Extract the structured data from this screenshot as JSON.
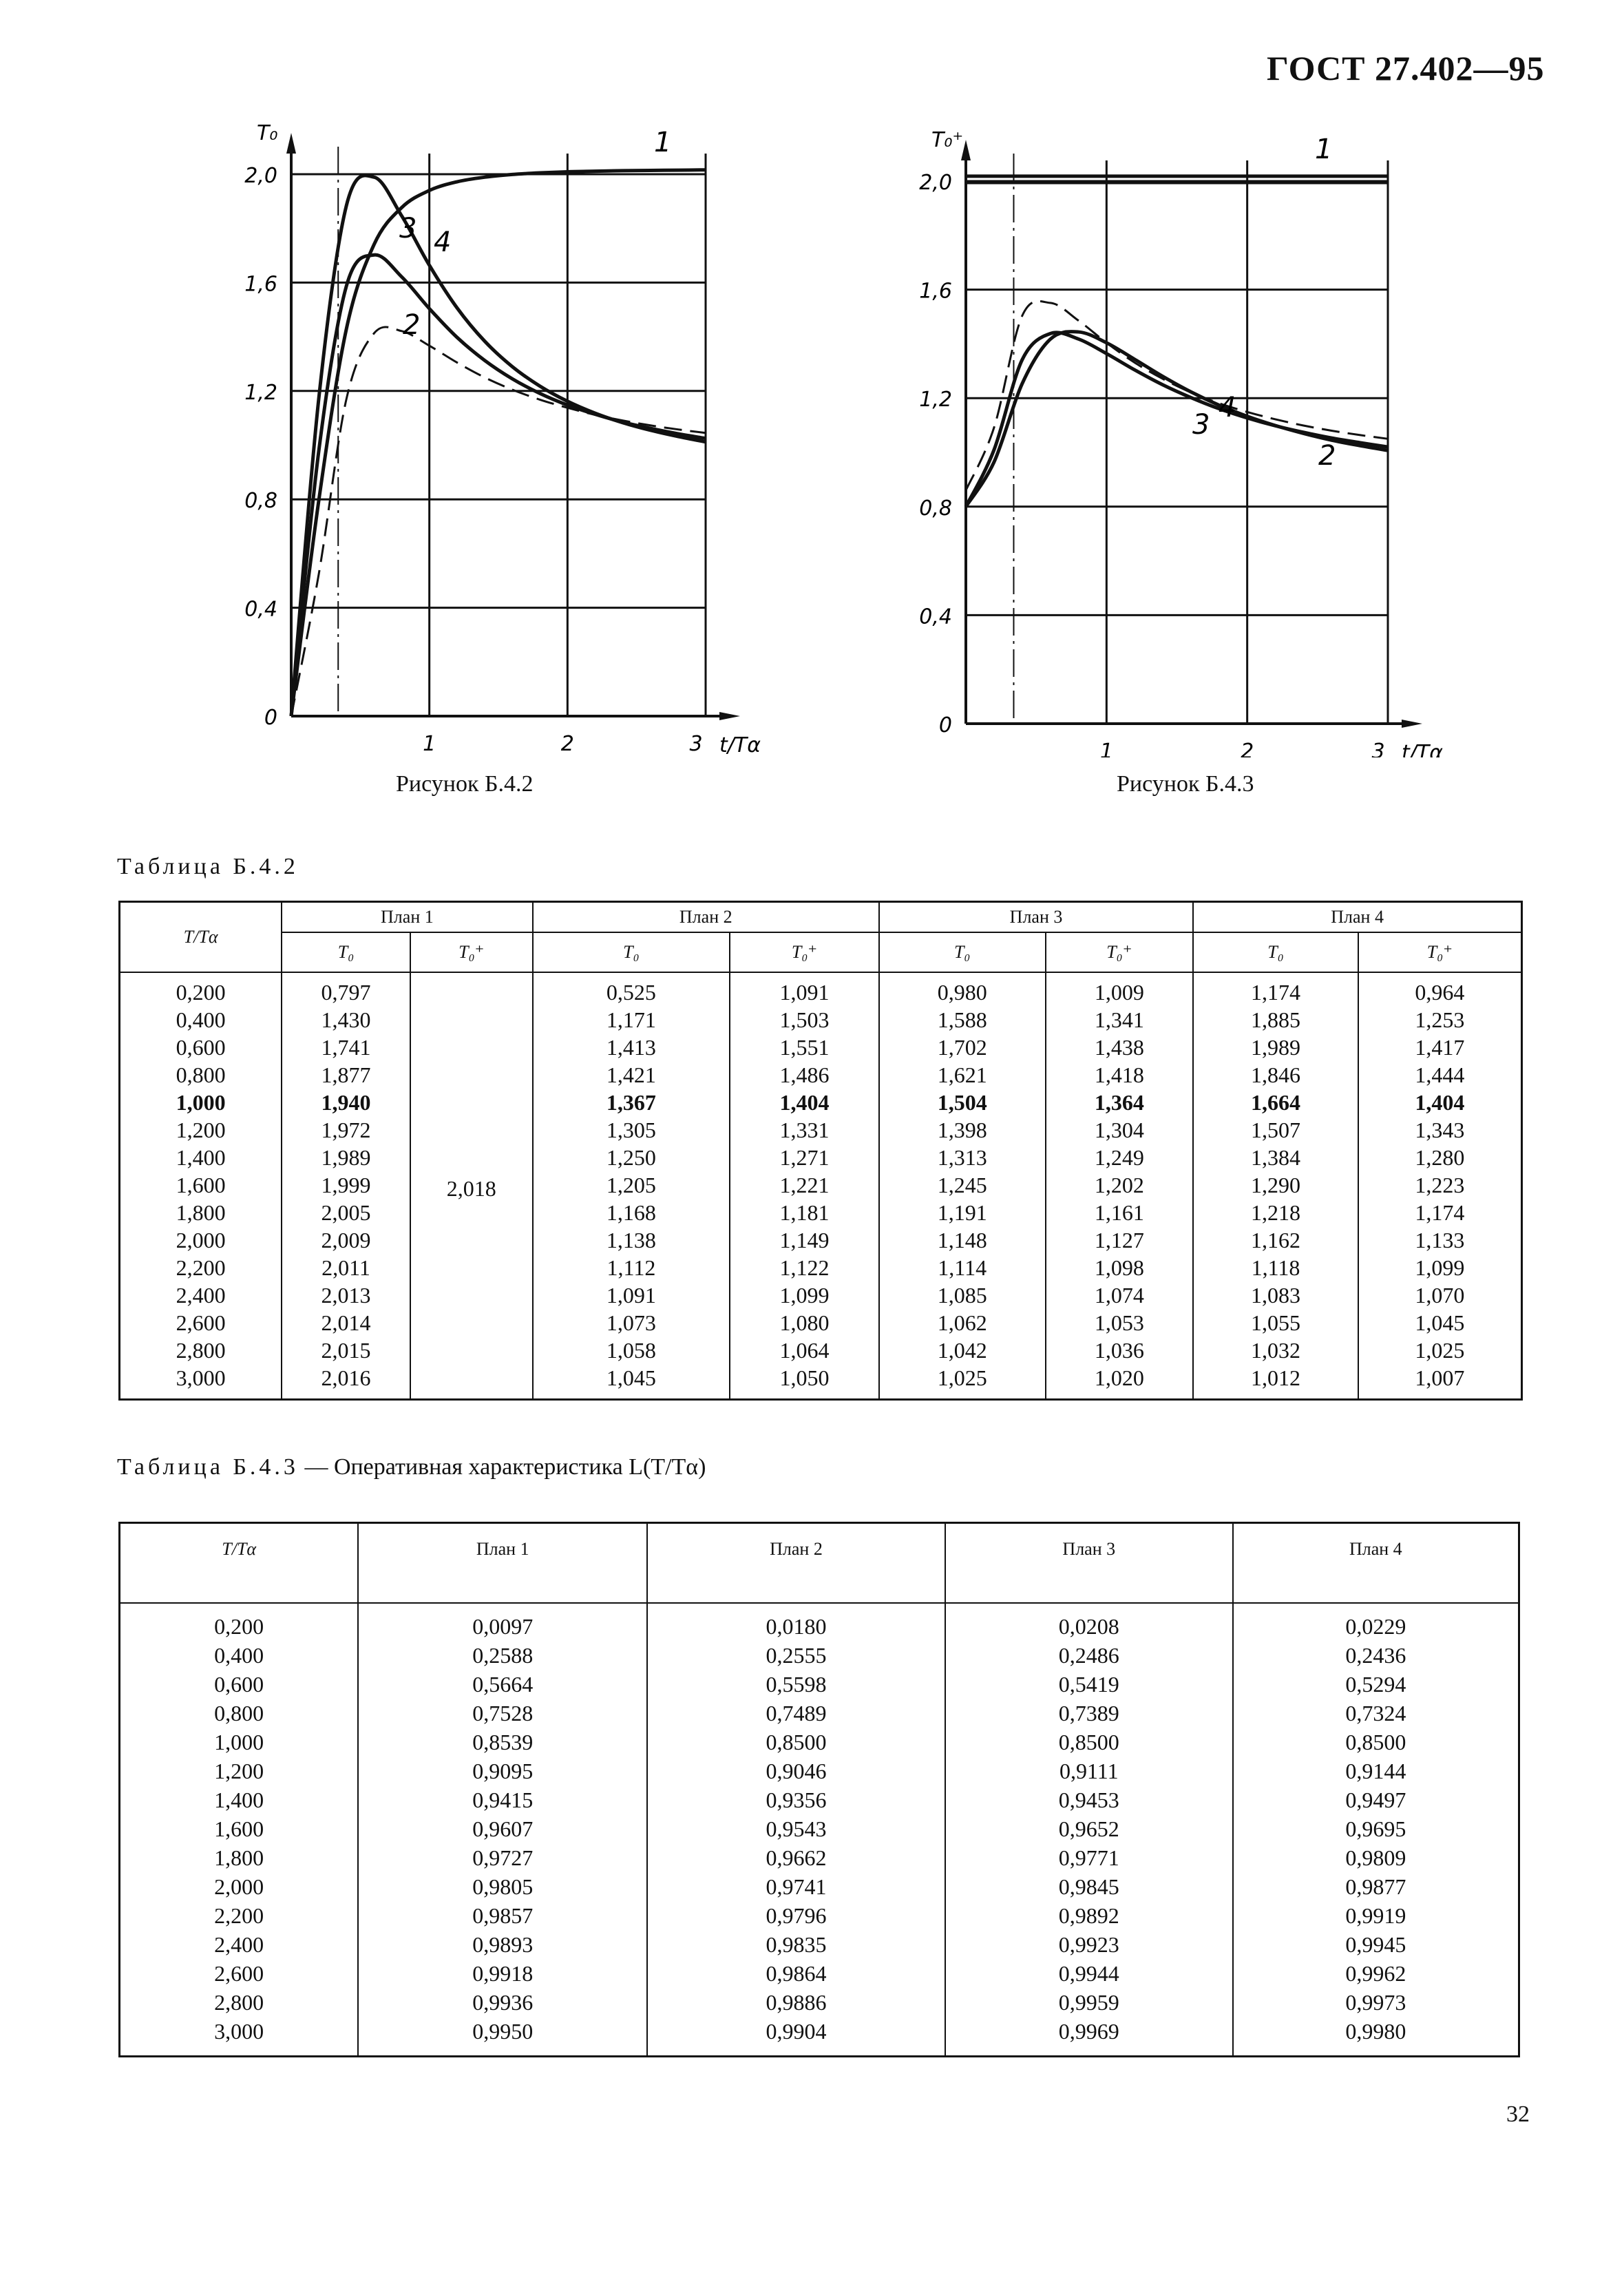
{
  "header": {
    "doc_id": "ГОСТ 27.402—95"
  },
  "figures": [
    {
      "caption": "Рисунок Б.4.2",
      "ylabel": "T₀",
      "xlabel": "t/Tα"
    },
    {
      "caption": "Рисунок Б.4.3",
      "ylabel": "T₀⁺",
      "xlabel": "t/Tα"
    }
  ],
  "chart_data": [
    {
      "type": "line",
      "title": "",
      "xlabel": "t/Tα",
      "ylabel": "T₀",
      "xlim": [
        0,
        3
      ],
      "ylim": [
        0,
        2.0
      ],
      "xticks": [
        "1",
        "2",
        "3"
      ],
      "yticks": [
        "0",
        "0,4",
        "0,8",
        "1,2",
        "1,6",
        "2,0"
      ],
      "grid": true,
      "series": [
        {
          "name": "1",
          "style": "solid",
          "x": [
            0,
            0.2,
            0.4,
            0.6,
            0.8,
            1.0,
            1.2,
            1.4,
            1.6,
            1.8,
            2.0,
            2.2,
            2.4,
            2.6,
            2.8,
            3.0
          ],
          "y": [
            0,
            0.797,
            1.43,
            1.741,
            1.877,
            1.94,
            1.972,
            1.989,
            1.999,
            2.005,
            2.009,
            2.011,
            2.013,
            2.014,
            2.015,
            2.016
          ]
        },
        {
          "name": "2",
          "style": "dashed",
          "x": [
            0,
            0.2,
            0.4,
            0.6,
            0.8,
            1.0,
            1.2,
            1.4,
            1.6,
            1.8,
            2.0,
            2.2,
            2.4,
            2.6,
            2.8,
            3.0
          ],
          "y": [
            0,
            0.525,
            1.171,
            1.413,
            1.421,
            1.367,
            1.305,
            1.25,
            1.205,
            1.168,
            1.138,
            1.112,
            1.091,
            1.073,
            1.058,
            1.045
          ]
        },
        {
          "name": "3",
          "style": "solid",
          "x": [
            0,
            0.2,
            0.4,
            0.6,
            0.8,
            1.0,
            1.2,
            1.4,
            1.6,
            1.8,
            2.0,
            2.2,
            2.4,
            2.6,
            2.8,
            3.0
          ],
          "y": [
            0,
            0.98,
            1.588,
            1.702,
            1.621,
            1.504,
            1.398,
            1.313,
            1.245,
            1.191,
            1.148,
            1.114,
            1.085,
            1.062,
            1.042,
            1.025
          ]
        },
        {
          "name": "4",
          "style": "solid",
          "x": [
            0,
            0.2,
            0.4,
            0.6,
            0.8,
            1.0,
            1.2,
            1.4,
            1.6,
            1.8,
            2.0,
            2.2,
            2.4,
            2.6,
            2.8,
            3.0
          ],
          "y": [
            0,
            1.174,
            1.885,
            1.989,
            1.846,
            1.664,
            1.507,
            1.384,
            1.29,
            1.218,
            1.162,
            1.118,
            1.083,
            1.055,
            1.032,
            1.012
          ]
        }
      ]
    },
    {
      "type": "line",
      "title": "",
      "xlabel": "t/Tα",
      "ylabel": "T₀⁺",
      "xlim": [
        0,
        3
      ],
      "ylim": [
        0,
        2.0
      ],
      "xticks": [
        "1",
        "2",
        "3"
      ],
      "yticks": [
        "0",
        "0,4",
        "0,8",
        "1,2",
        "1,6",
        "2,0"
      ],
      "grid": true,
      "series": [
        {
          "name": "1",
          "style": "solid",
          "x": [
            0,
            3.0
          ],
          "y": [
            2.018,
            2.018
          ]
        },
        {
          "name": "2",
          "style": "dashed",
          "x": [
            0,
            0.2,
            0.4,
            0.6,
            0.8,
            1.0,
            1.2,
            1.4,
            1.6,
            1.8,
            2.0,
            2.2,
            2.4,
            2.6,
            2.8,
            3.0
          ],
          "y": [
            0.86,
            1.091,
            1.503,
            1.551,
            1.486,
            1.404,
            1.331,
            1.271,
            1.221,
            1.181,
            1.149,
            1.122,
            1.099,
            1.08,
            1.064,
            1.05
          ]
        },
        {
          "name": "3",
          "style": "solid",
          "x": [
            0,
            0.2,
            0.4,
            0.6,
            0.8,
            1.0,
            1.2,
            1.4,
            1.6,
            1.8,
            2.0,
            2.2,
            2.4,
            2.6,
            2.8,
            3.0
          ],
          "y": [
            0.8,
            1.009,
            1.341,
            1.438,
            1.418,
            1.364,
            1.304,
            1.249,
            1.202,
            1.161,
            1.127,
            1.098,
            1.074,
            1.053,
            1.036,
            1.02
          ]
        },
        {
          "name": "4",
          "style": "solid",
          "x": [
            0,
            0.2,
            0.4,
            0.6,
            0.8,
            1.0,
            1.2,
            1.4,
            1.6,
            1.8,
            2.0,
            2.2,
            2.4,
            2.6,
            2.8,
            3.0
          ],
          "y": [
            0.8,
            0.964,
            1.253,
            1.417,
            1.444,
            1.404,
            1.343,
            1.28,
            1.223,
            1.174,
            1.133,
            1.099,
            1.07,
            1.045,
            1.025,
            1.007
          ]
        }
      ]
    }
  ],
  "table1": {
    "title": "Таблица Б.4.2",
    "col_header": "T/Tα",
    "plans": [
      "План 1",
      "План 2",
      "План 3",
      "План 4"
    ],
    "sub_headers": [
      "T₀",
      "T₀⁺",
      "T₀",
      "T₀⁺",
      "T₀",
      "T₀⁺",
      "T₀",
      "T₀⁺"
    ],
    "highlight_row": "1,000",
    "plan1_t0_plus": "2,018",
    "rows": [
      [
        "0,200",
        "0,797",
        "0,525",
        "1,091",
        "0,980",
        "1,009",
        "1,174",
        "0,964"
      ],
      [
        "0,400",
        "1,430",
        "1,171",
        "1,503",
        "1,588",
        "1,341",
        "1,885",
        "1,253"
      ],
      [
        "0,600",
        "1,741",
        "1,413",
        "1,551",
        "1,702",
        "1,438",
        "1,989",
        "1,417"
      ],
      [
        "0,800",
        "1,877",
        "1,421",
        "1,486",
        "1,621",
        "1,418",
        "1,846",
        "1,444"
      ],
      [
        "1,000",
        "1,940",
        "1,367",
        "1,404",
        "1,504",
        "1,364",
        "1,664",
        "1,404"
      ],
      [
        "1,200",
        "1,972",
        "1,305",
        "1,331",
        "1,398",
        "1,304",
        "1,507",
        "1,343"
      ],
      [
        "1,400",
        "1,989",
        "1,250",
        "1,271",
        "1,313",
        "1,249",
        "1,384",
        "1,280"
      ],
      [
        "1,600",
        "1,999",
        "1,205",
        "1,221",
        "1,245",
        "1,202",
        "1,290",
        "1,223"
      ],
      [
        "1,800",
        "2,005",
        "1,168",
        "1,181",
        "1,191",
        "1,161",
        "1,218",
        "1,174"
      ],
      [
        "2,000",
        "2,009",
        "1,138",
        "1,149",
        "1,148",
        "1,127",
        "1,162",
        "1,133"
      ],
      [
        "2,200",
        "2,011",
        "1,112",
        "1,122",
        "1,114",
        "1,098",
        "1,118",
        "1,099"
      ],
      [
        "2,400",
        "2,013",
        "1,091",
        "1,099",
        "1,085",
        "1,074",
        "1,083",
        "1,070"
      ],
      [
        "2,600",
        "2,014",
        "1,073",
        "1,080",
        "1,062",
        "1,053",
        "1,055",
        "1,045"
      ],
      [
        "2,800",
        "2,015",
        "1,058",
        "1,064",
        "1,042",
        "1,036",
        "1,032",
        "1,025"
      ],
      [
        "3,000",
        "2,016",
        "1,045",
        "1,050",
        "1,025",
        "1,020",
        "1,012",
        "1,007"
      ]
    ]
  },
  "table2": {
    "title_prefix": "Таблица Б.4.3",
    "title_rest": " — Оперативная характеристика L(T/Tα)",
    "headers": [
      "T/Tα",
      "План 1",
      "План 2",
      "План 3",
      "План 4"
    ],
    "rows": [
      [
        "0,200",
        "0,0097",
        "0,0180",
        "0,0208",
        "0,0229"
      ],
      [
        "0,400",
        "0,2588",
        "0,2555",
        "0,2486",
        "0,2436"
      ],
      [
        "0,600",
        "0,5664",
        "0,5598",
        "0,5419",
        "0,5294"
      ],
      [
        "0,800",
        "0,7528",
        "0,7489",
        "0,7389",
        "0,7324"
      ],
      [
        "1,000",
        "0,8539",
        "0,8500",
        "0,8500",
        "0,8500"
      ],
      [
        "1,200",
        "0,9095",
        "0,9046",
        "0,9111",
        "0,9144"
      ],
      [
        "1,400",
        "0,9415",
        "0,9356",
        "0,9453",
        "0,9497"
      ],
      [
        "1,600",
        "0,9607",
        "0,9543",
        "0,9652",
        "0,9695"
      ],
      [
        "1,800",
        "0,9727",
        "0,9662",
        "0,9771",
        "0,9809"
      ],
      [
        "2,000",
        "0,9805",
        "0,9741",
        "0,9845",
        "0,9877"
      ],
      [
        "2,200",
        "0,9857",
        "0,9796",
        "0,9892",
        "0,9919"
      ],
      [
        "2,400",
        "0,9893",
        "0,9835",
        "0,9923",
        "0,9945"
      ],
      [
        "2,600",
        "0,9918",
        "0,9864",
        "0,9944",
        "0,9962"
      ],
      [
        "2,800",
        "0,9936",
        "0,9886",
        "0,9959",
        "0,9973"
      ],
      [
        "3,000",
        "0,9950",
        "0,9904",
        "0,9969",
        "0,9980"
      ]
    ]
  },
  "page_number": "32"
}
